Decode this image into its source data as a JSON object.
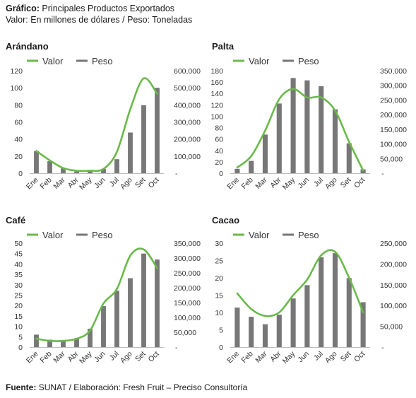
{
  "header": {
    "grafico_label": "Gráfico:",
    "grafico_text": "Principales Productos Exportados",
    "units_text": "Valor: En millones de dólares / Peso: Toneladas"
  },
  "footer": {
    "fuente_label": "Fuente:",
    "fuente_text": "SUNAT / Elaboración: Fresh Fruit – Preciso Consultoría"
  },
  "colors": {
    "line": "#6ab94a",
    "bar": "#777777",
    "axis": "#bdbdbd"
  },
  "chart_data": [
    {
      "type": "bar",
      "title": "Arándano",
      "categories": [
        "Ene",
        "Feb",
        "Mar",
        "Abr",
        "May",
        "Jun",
        "Jul",
        "Ago",
        "Set",
        "Oct"
      ],
      "legend": [
        "Valor",
        "Peso"
      ],
      "legend_position": "top",
      "series": [
        {
          "name": "Valor",
          "kind": "line",
          "axis": "left",
          "values": [
            26,
            15,
            6,
            3,
            3,
            5,
            25,
            75,
            111,
            93
          ]
        },
        {
          "name": "Peso",
          "kind": "bar",
          "axis": "right",
          "values": [
            130000,
            70000,
            28000,
            10000,
            13000,
            25000,
            82000,
            238000,
            398000,
            500000
          ]
        }
      ],
      "left_axis": {
        "min": 0,
        "max": 120,
        "ticks": [
          0,
          20,
          40,
          60,
          80,
          100,
          120
        ],
        "tick_labels": [
          "0",
          "20",
          "40",
          "60",
          "80",
          "100",
          "120"
        ]
      },
      "right_axis": {
        "min": 0,
        "max": 600000,
        "ticks": [
          0,
          100000,
          200000,
          300000,
          400000,
          500000,
          600000
        ],
        "tick_labels": [
          "-",
          "100,000",
          "200,000",
          "300,000",
          "400,000",
          "500,000",
          "600,000"
        ]
      },
      "grid": false
    },
    {
      "type": "bar",
      "title": "Palta",
      "categories": [
        "Ene",
        "Feb",
        "Mar",
        "Abr",
        "May",
        "Jun",
        "Jul",
        "Ago",
        "Set",
        "Oct"
      ],
      "legend": [
        "Valor",
        "Peso"
      ],
      "legend_position": "top",
      "series": [
        {
          "name": "Valor",
          "kind": "line",
          "axis": "left",
          "values": [
            10,
            30,
            75,
            130,
            148,
            133,
            133,
            110,
            55,
            5
          ]
        },
        {
          "name": "Peso",
          "kind": "bar",
          "axis": "right",
          "values": [
            15000,
            42000,
            132000,
            238000,
            325000,
            317000,
            297000,
            218000,
            102000,
            13000
          ]
        }
      ],
      "left_axis": {
        "min": 0,
        "max": 180,
        "ticks": [
          0,
          20,
          40,
          60,
          80,
          100,
          120,
          140,
          160,
          180
        ],
        "tick_labels": [
          "0",
          "20",
          "40",
          "60",
          "80",
          "100",
          "120",
          "140",
          "160",
          "180"
        ]
      },
      "right_axis": {
        "min": 0,
        "max": 350000,
        "ticks": [
          0,
          50000,
          100000,
          150000,
          200000,
          250000,
          300000,
          350000
        ],
        "tick_labels": [
          "-",
          "50,000",
          "100,000",
          "150,000",
          "200,000",
          "250,000",
          "300,000",
          "350,000"
        ]
      },
      "grid": false
    },
    {
      "type": "bar",
      "title": "Café",
      "categories": [
        "Ene",
        "Feb",
        "Mar",
        "Abr",
        "May",
        "Jun",
        "Jul",
        "Ago",
        "Set",
        "Oct"
      ],
      "legend": [
        "Valor",
        "Peso"
      ],
      "legend_position": "top",
      "series": [
        {
          "name": "Valor",
          "kind": "line",
          "axis": "left",
          "values": [
            4,
            3,
            3,
            4,
            8,
            21,
            28,
            44,
            47,
            38
          ]
        },
        {
          "name": "Peso",
          "kind": "bar",
          "axis": "right",
          "values": [
            42000,
            25000,
            22000,
            30000,
            62000,
            138000,
            190000,
            232000,
            315000,
            295000
          ]
        }
      ],
      "left_axis": {
        "min": 0,
        "max": 50,
        "ticks": [
          0,
          5,
          10,
          15,
          20,
          25,
          30,
          35,
          40,
          45,
          50
        ],
        "tick_labels": [
          "0",
          "5",
          "10",
          "15",
          "20",
          "25",
          "30",
          "35",
          "40",
          "45",
          "50"
        ]
      },
      "right_axis": {
        "min": 0,
        "max": 350000,
        "ticks": [
          0,
          50000,
          100000,
          150000,
          200000,
          250000,
          300000,
          350000
        ],
        "tick_labels": [
          "-",
          "50,000",
          "100,000",
          "150,000",
          "200,000",
          "250,000",
          "300,000",
          "350,000"
        ]
      },
      "grid": false
    },
    {
      "type": "bar",
      "title": "Cacao",
      "categories": [
        "Ene",
        "Feb",
        "Mar",
        "Abr",
        "May",
        "Jun",
        "Jul",
        "Ago",
        "Set",
        "Oct"
      ],
      "legend": [
        "Valor",
        "Peso"
      ],
      "legend_position": "top",
      "series": [
        {
          "name": "Valor",
          "kind": "line",
          "axis": "left",
          "values": [
            15.5,
            11,
            9,
            10,
            15,
            19.5,
            26.5,
            27.5,
            20,
            10
          ]
        },
        {
          "name": "Peso",
          "kind": "bar",
          "axis": "right",
          "values": [
            95000,
            73000,
            55000,
            78000,
            117000,
            149000,
            216000,
            226000,
            166000,
            108000
          ]
        }
      ],
      "left_axis": {
        "min": 0,
        "max": 30,
        "ticks": [
          0,
          5,
          10,
          15,
          20,
          25,
          30
        ],
        "tick_labels": [
          "0",
          "5",
          "10",
          "15",
          "20",
          "25",
          "30"
        ]
      },
      "right_axis": {
        "min": 0,
        "max": 250000,
        "ticks": [
          0,
          50000,
          100000,
          150000,
          200000,
          250000
        ],
        "tick_labels": [
          "-",
          "50,000",
          "100,000",
          "150,000",
          "200,000",
          "250,000"
        ]
      },
      "grid": false
    }
  ]
}
